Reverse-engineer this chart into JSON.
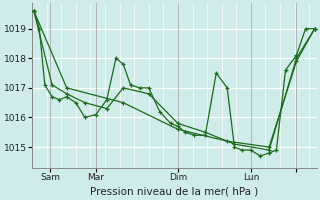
{
  "bg_color": "#d0ecea",
  "line_color": "#1a6b1a",
  "ylim": [
    1014.3,
    1019.85
  ],
  "yticks": [
    1015,
    1016,
    1017,
    1018,
    1019
  ],
  "xlim": [
    0,
    312
  ],
  "x_tick_positions": [
    20,
    70,
    160,
    240,
    290
  ],
  "x_tick_labels": [
    "Sam",
    "Mar",
    "Dim",
    "Lun",
    ""
  ],
  "xlabel": "Pression niveau de la mer( hPa )",
  "series1_x": [
    2,
    8,
    14,
    22,
    30,
    38,
    48,
    58,
    70,
    82,
    92,
    100,
    108,
    118,
    128,
    140,
    152,
    160,
    168,
    178,
    190,
    202,
    214,
    222,
    230,
    240,
    250,
    260,
    268,
    278,
    290,
    300,
    310
  ],
  "series1_y": [
    1019.6,
    1019.0,
    1017.1,
    1016.7,
    1016.6,
    1016.7,
    1016.5,
    1016.0,
    1016.1,
    1016.6,
    1018.0,
    1017.8,
    1017.1,
    1017.0,
    1017.0,
    1016.2,
    1015.8,
    1015.7,
    1015.5,
    1015.4,
    1015.4,
    1017.5,
    1017.0,
    1015.0,
    1014.9,
    1014.9,
    1014.7,
    1014.8,
    1014.9,
    1017.6,
    1018.1,
    1019.0,
    1019.0
  ],
  "series2_x": [
    2,
    38,
    100,
    160,
    214,
    260,
    290,
    310
  ],
  "series2_y": [
    1019.6,
    1017.0,
    1016.5,
    1015.6,
    1015.2,
    1015.0,
    1017.9,
    1019.0
  ],
  "series3_x": [
    2,
    22,
    38,
    58,
    82,
    100,
    128,
    160,
    190,
    222,
    260,
    290,
    310
  ],
  "series3_y": [
    1019.6,
    1017.1,
    1016.8,
    1016.5,
    1016.3,
    1017.0,
    1016.8,
    1015.8,
    1015.5,
    1015.1,
    1014.9,
    1018.0,
    1019.0
  ],
  "figsize": [
    3.2,
    2.0
  ],
  "dpi": 100
}
